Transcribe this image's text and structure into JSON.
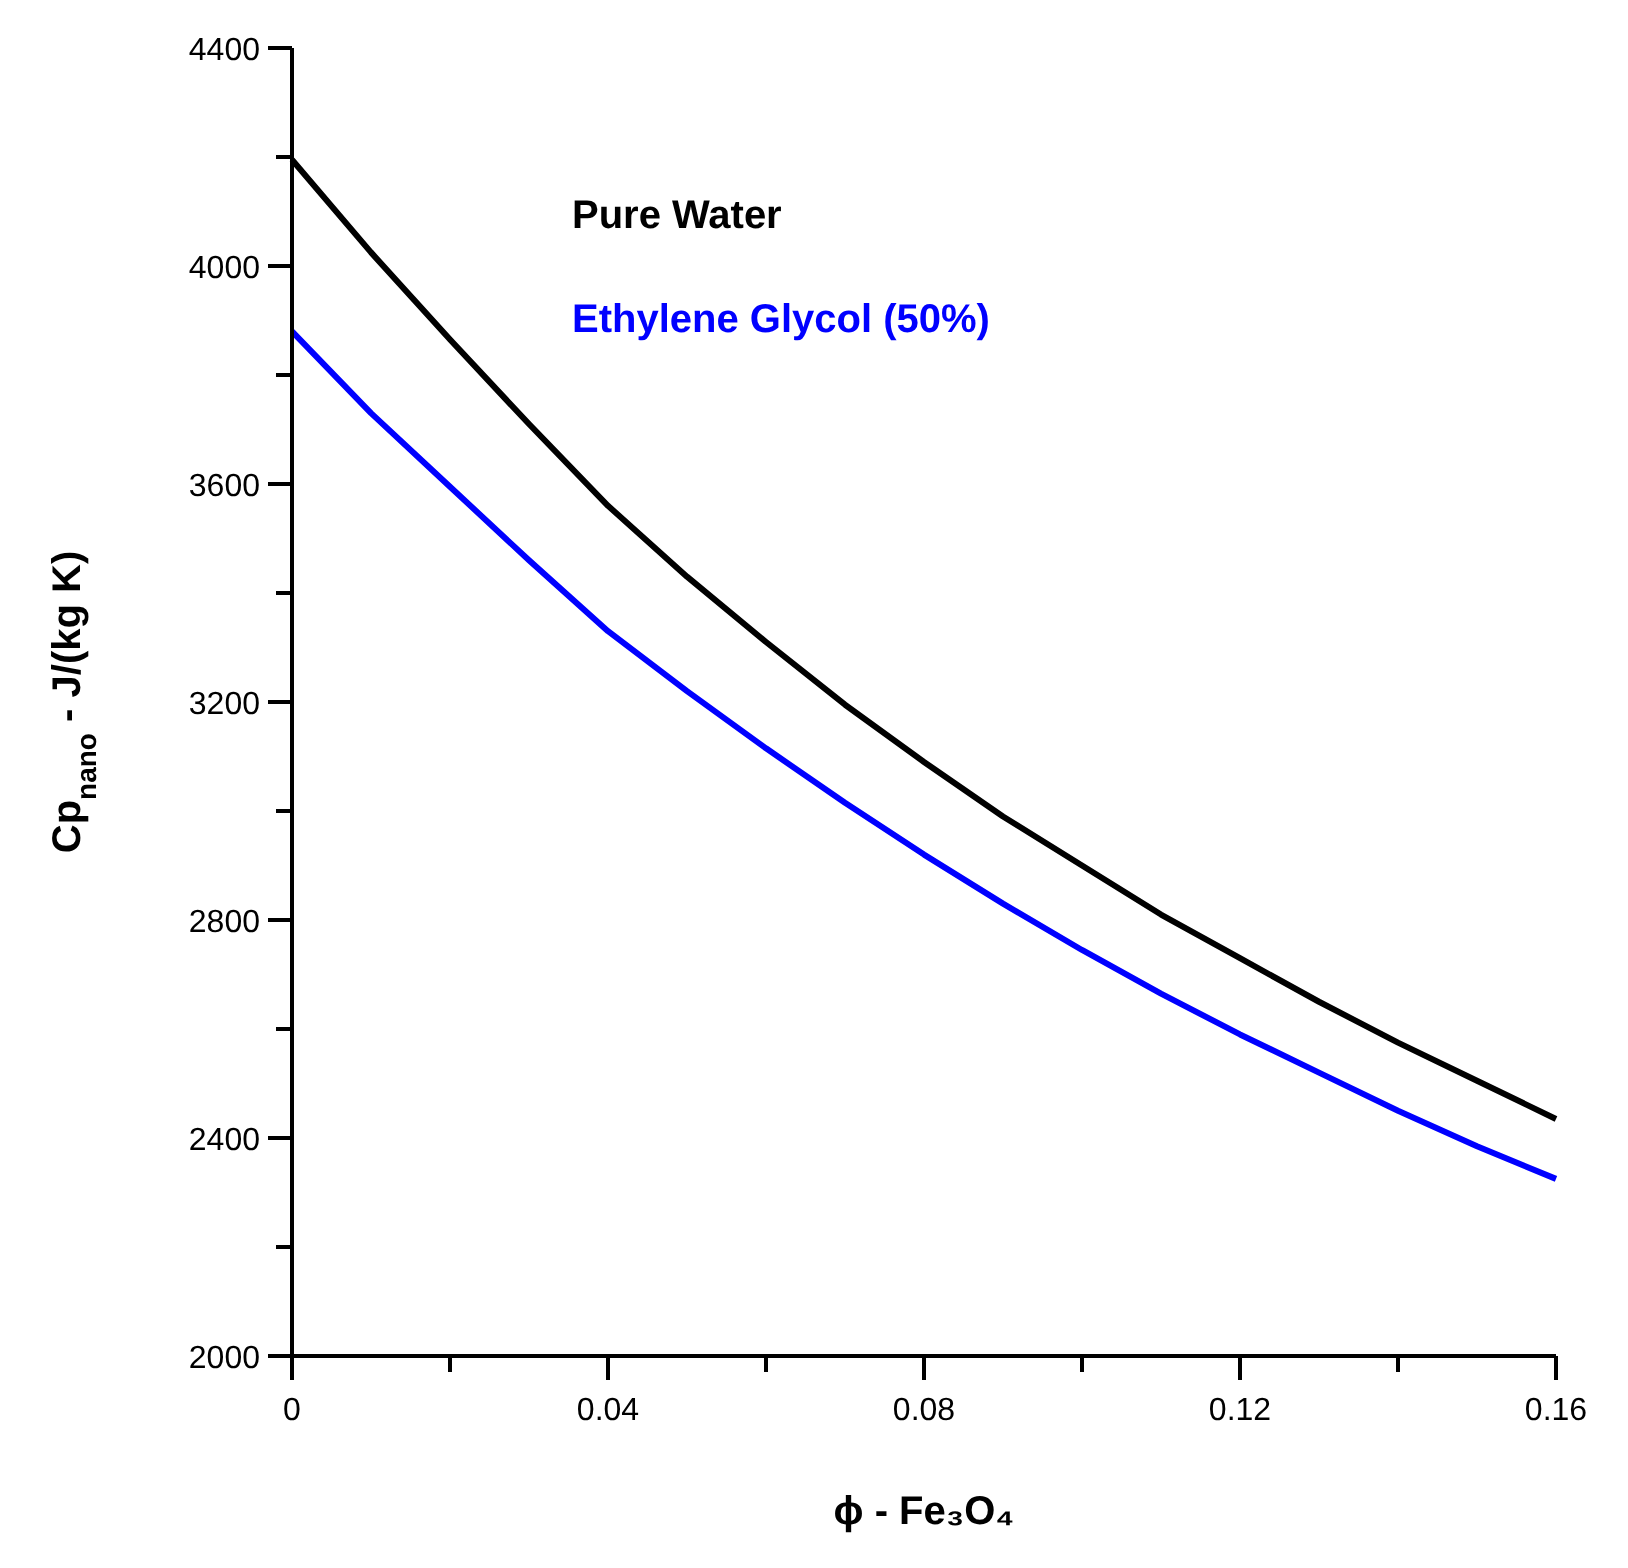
{
  "chart_data": {
    "type": "line",
    "xlabel": "ϕ - Fe₃O₄",
    "ylabel": "Cp$_{nano}$ - J/(kg K)",
    "x": [
      0,
      0.01,
      0.02,
      0.03,
      0.04,
      0.05,
      0.06,
      0.07,
      0.08,
      0.09,
      0.1,
      0.11,
      0.12,
      0.13,
      0.14,
      0.15,
      0.16
    ],
    "series": [
      {
        "name": "Pure Water",
        "color": "#000000",
        "values": [
          4195,
          4025,
          3865,
          3710,
          3560,
          3430,
          3310,
          3195,
          3090,
          2990,
          2900,
          2810,
          2730,
          2650,
          2575,
          2505,
          2435
        ]
      },
      {
        "name": "Ethylene Glycol (50%)",
        "color": "#0000ff",
        "values": [
          3880,
          3730,
          3595,
          3460,
          3330,
          3220,
          3115,
          3015,
          2920,
          2830,
          2745,
          2665,
          2590,
          2520,
          2450,
          2385,
          2325
        ]
      }
    ],
    "xlim": [
      0,
      0.16
    ],
    "ylim": [
      2000,
      4400
    ],
    "xticks": [
      0,
      {
        "value": 0.02,
        "label": null
      },
      0.04,
      {
        "value": 0.06,
        "label": null
      },
      0.08,
      {
        "value": 0.1,
        "label": null
      },
      0.12,
      {
        "value": 0.14,
        "label": null
      },
      0.16
    ],
    "yticks": [
      2000,
      {
        "value": 2200,
        "label": null
      },
      2400,
      {
        "value": 2600,
        "label": null
      },
      2800,
      {
        "value": 3000,
        "label": null
      },
      3200,
      {
        "value": 3400,
        "label": null
      },
      3600,
      {
        "value": 3800,
        "label": null
      },
      4000,
      {
        "value": 4200,
        "label": null
      },
      4400
    ],
    "legend": "top left",
    "marker": "none",
    "line_style": "solid",
    "grid": false
  }
}
